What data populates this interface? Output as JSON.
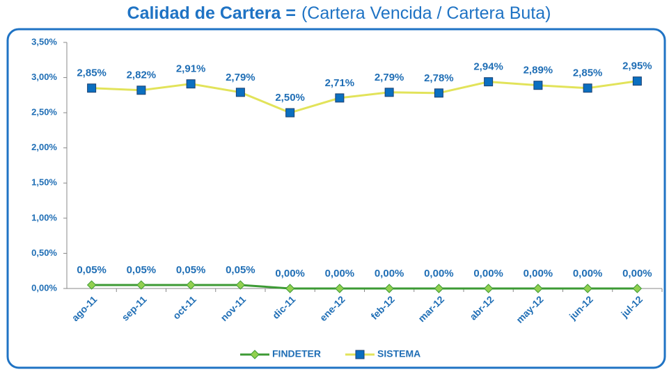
{
  "chart_data": {
    "type": "line",
    "title": "Calidad de Cartera =",
    "title_note": "(Cartera Vencida / Cartera Buta)",
    "categories": [
      "ago-11",
      "sep-11",
      "oct-11",
      "nov-11",
      "dic-11",
      "ene-12",
      "feb-12",
      "mar-12",
      "abr-12",
      "may-12",
      "jun-12",
      "jul-12"
    ],
    "series": [
      {
        "name": "FINDETER",
        "color": "#3c9a34",
        "marker_color": "#92d050",
        "values": [
          0.05,
          0.05,
          0.05,
          0.05,
          0,
          0,
          0,
          0,
          0,
          0,
          0,
          0
        ],
        "value_labels": [
          "0,05%",
          "0,05%",
          "0,05%",
          "0,05%",
          "0,00%",
          "0,00%",
          "0,00%",
          "0,00%",
          "0,00%",
          "0,00%",
          "0,00%",
          "0,00%"
        ]
      },
      {
        "name": "SISTEMA",
        "color": "#e2e35a",
        "marker_color": "#0b6fc0",
        "values": [
          2.85,
          2.82,
          2.91,
          2.79,
          2.5,
          2.71,
          2.79,
          2.78,
          2.94,
          2.89,
          2.85,
          2.95
        ],
        "value_labels": [
          "2,85%",
          "2,82%",
          "2,91%",
          "2,79%",
          "2,50%",
          "2,71%",
          "2,79%",
          "2,78%",
          "2,94%",
          "2,89%",
          "2,85%",
          "2,95%"
        ]
      }
    ],
    "ylim": [
      0,
      3.5
    ],
    "yticks": [
      {
        "value": 0,
        "label": "0,00%"
      },
      {
        "value": 0.5,
        "label": "0,50%"
      },
      {
        "value": 1,
        "label": "1,00%"
      },
      {
        "value": 1.5,
        "label": "1,50%"
      },
      {
        "value": 2,
        "label": "2,00%"
      },
      {
        "value": 2.5,
        "label": "2,50%"
      },
      {
        "value": 3,
        "label": "3,00%"
      },
      {
        "value": 3.5,
        "label": "3,50%"
      }
    ],
    "grid": false,
    "legend": "bottom"
  }
}
